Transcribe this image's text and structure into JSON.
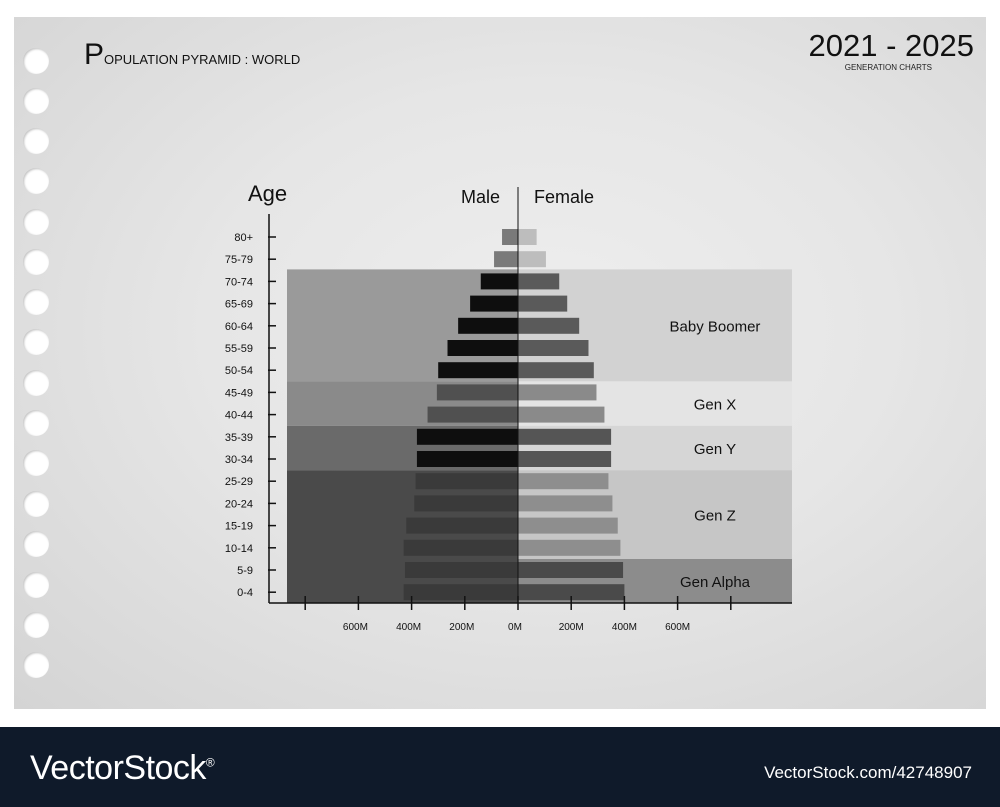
{
  "header": {
    "title_initial": "P",
    "title_rest": "OPULATION PYRAMID : WORLD",
    "years": "2021 - 2025",
    "years_sub": "GENERATION CHARTS"
  },
  "footer": {
    "brand": "VectorStock",
    "brand_mark": "®",
    "image_id": "VectorStock.com/42748907"
  },
  "colors": {
    "footer_bg": "#0f1a2a",
    "paper_bg": "#e6e6e6",
    "male_bar": "#111111",
    "female_bar": "#555555"
  },
  "chart_data": {
    "type": "bar",
    "orientation": "horizontal-population-pyramid",
    "axis_title_y": "Age",
    "series_left_label": "Male",
    "series_right_label": "Female",
    "x_tick_labels": [
      "600M",
      "400M",
      "200M",
      "0M",
      "200M",
      "400M",
      "600M"
    ],
    "xlim": [
      -800,
      800
    ],
    "categories": [
      "80+",
      "75-79",
      "70-74",
      "65-69",
      "60-64",
      "55-59",
      "50-54",
      "45-49",
      "40-44",
      "35-39",
      "30-34",
      "25-29",
      "20-24",
      "15-19",
      "10-14",
      "5-9",
      "0-4"
    ],
    "series": [
      {
        "name": "Male",
        "values": [
          60,
          90,
          140,
          180,
          225,
          265,
          300,
          305,
          340,
          380,
          380,
          385,
          390,
          420,
          430,
          425,
          430
        ]
      },
      {
        "name": "Female",
        "values": [
          70,
          105,
          155,
          185,
          230,
          265,
          285,
          295,
          325,
          350,
          350,
          340,
          355,
          375,
          385,
          395,
          400
        ]
      }
    ],
    "generations": [
      {
        "label": "Baby Boomer",
        "from": "70-74",
        "to": "50-54"
      },
      {
        "label": "Gen X",
        "from": "45-49",
        "to": "40-44"
      },
      {
        "label": "Gen Y",
        "from": "35-39",
        "to": "30-34"
      },
      {
        "label": "Gen Z",
        "from": "25-29",
        "to": "10-14"
      },
      {
        "label": "Gen Alpha",
        "from": "5-9",
        "to": "0-4"
      }
    ]
  }
}
